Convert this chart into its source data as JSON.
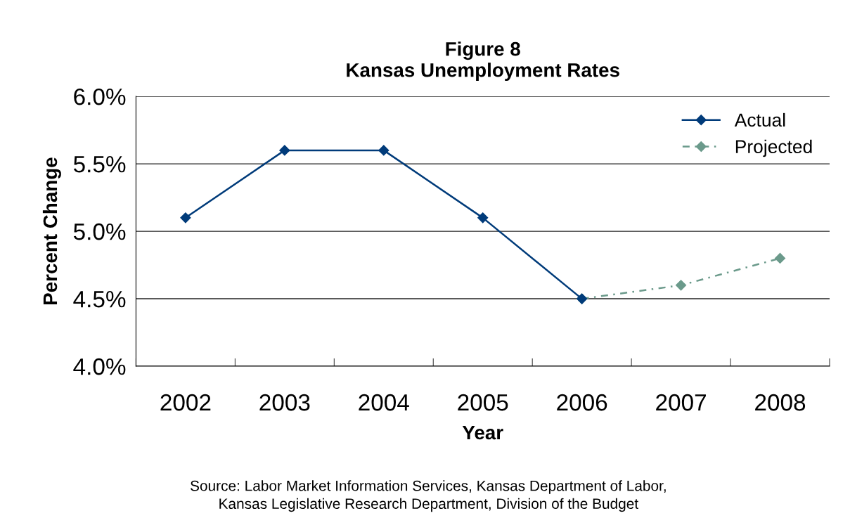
{
  "chart_data": {
    "type": "line",
    "title": "Figure 8\nKansas Unemployment Rates",
    "xlabel": "Year",
    "ylabel": "Percent Change",
    "categories": [
      "2002",
      "2003",
      "2004",
      "2005",
      "2006",
      "2007",
      "2008"
    ],
    "series": [
      {
        "name": "Actual",
        "color": "#003b7a",
        "line_style": "solid",
        "values": [
          5.1,
          5.6,
          5.6,
          5.1,
          4.5,
          null,
          null
        ]
      },
      {
        "name": "Projected",
        "color": "#6b9a8b",
        "line_style": "dashed",
        "values": [
          null,
          null,
          null,
          null,
          4.5,
          4.6,
          4.8
        ]
      }
    ],
    "ylim": [
      4.0,
      6.0
    ],
    "yticks": [
      {
        "value": 4.0,
        "label": "4.0%"
      },
      {
        "value": 4.5,
        "label": "4.5%"
      },
      {
        "value": 5.0,
        "label": "5.0%"
      },
      {
        "value": 5.5,
        "label": "5.5%"
      },
      {
        "value": 6.0,
        "label": "6.0%"
      }
    ],
    "grid": "y",
    "legend": "top right",
    "marker": "diamond",
    "annotations": [
      "Source: Labor Market Information Services, Kansas Department of Labor,\nKansas Legislative Research Department, Division of the Budget"
    ]
  }
}
